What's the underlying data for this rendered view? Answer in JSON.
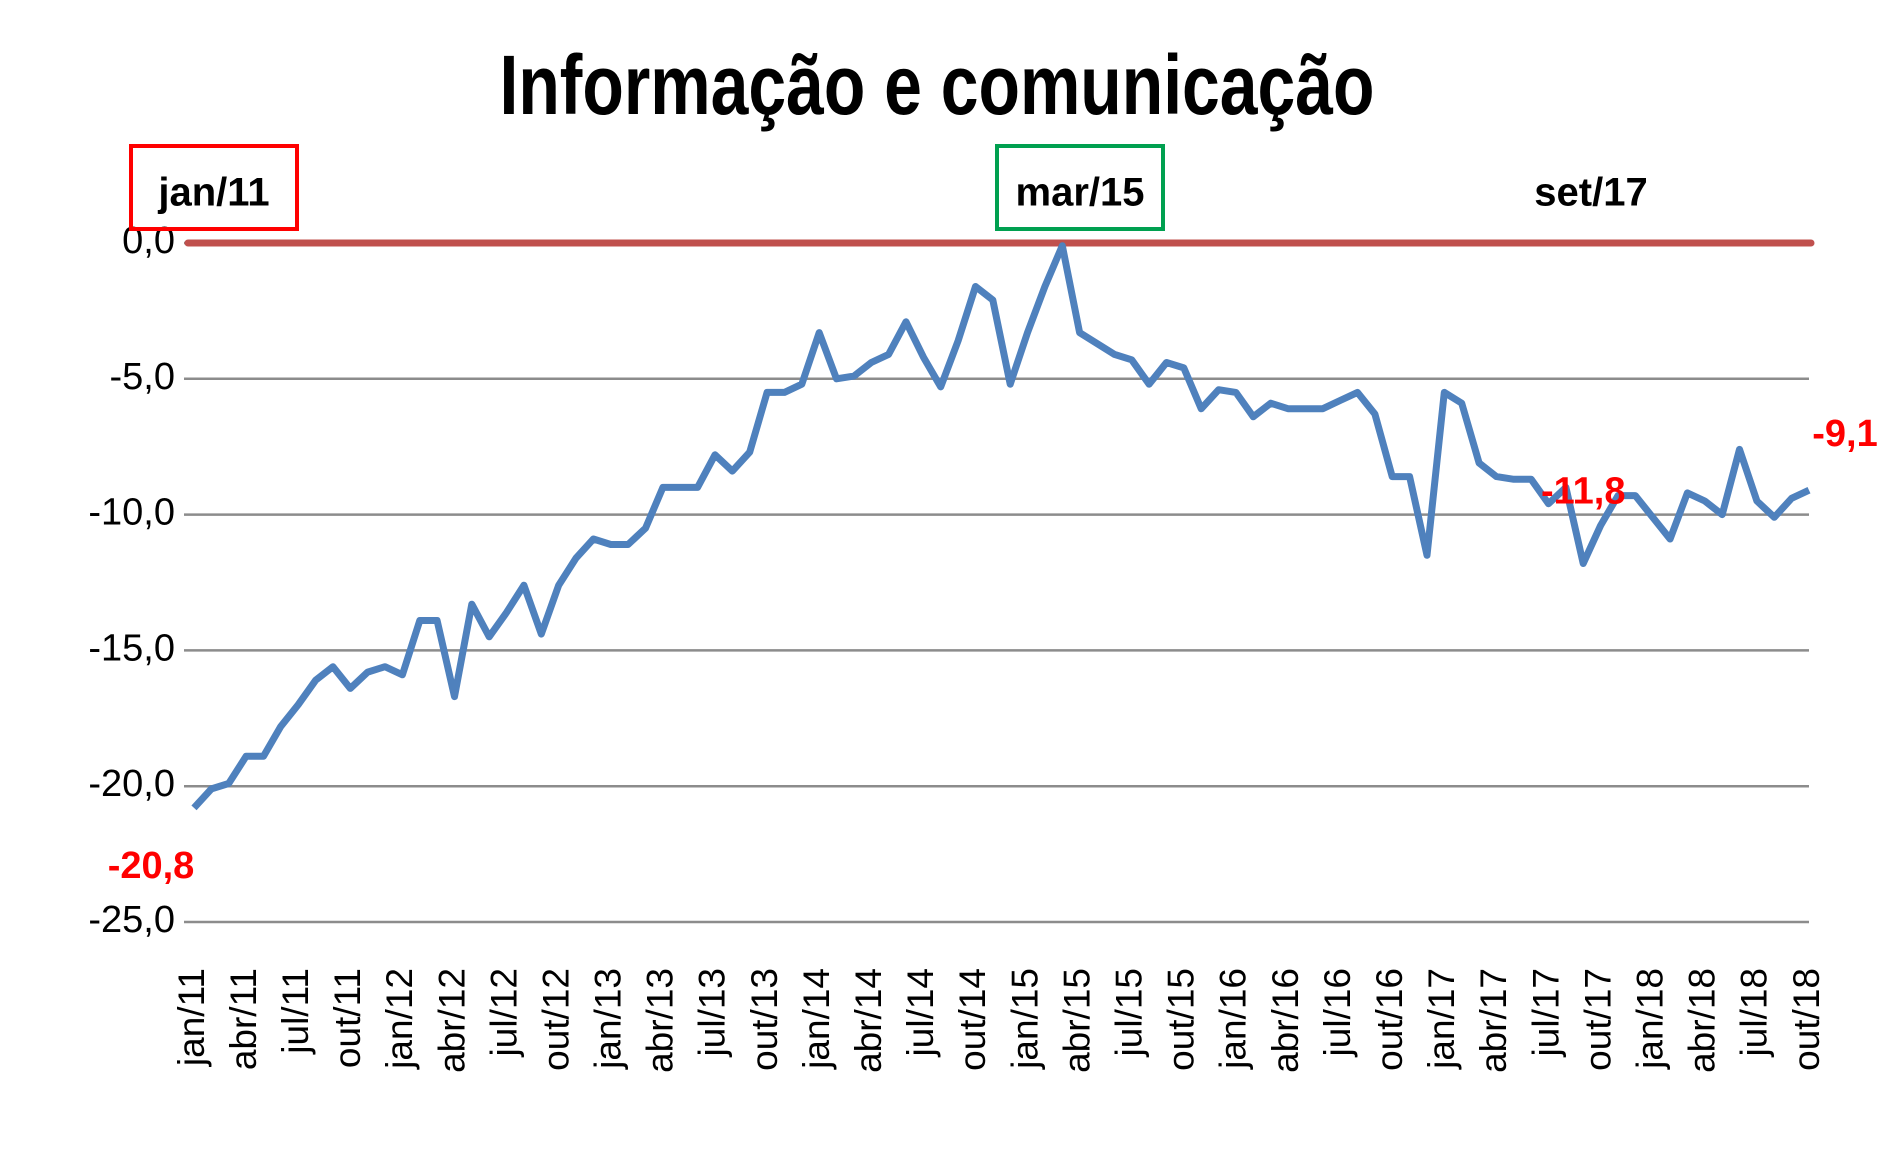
{
  "chart_data": {
    "type": "line",
    "title": "Informação e comunicação",
    "categories": [
      "jan/11",
      null,
      null,
      "abr/11",
      null,
      null,
      "jul/11",
      null,
      null,
      "out/11",
      null,
      null,
      "jan/12",
      null,
      null,
      "abr/12",
      null,
      null,
      "jul/12",
      null,
      null,
      "out/12",
      null,
      null,
      "jan/13",
      null,
      null,
      "abr/13",
      null,
      null,
      "jul/13",
      null,
      null,
      "out/13",
      null,
      null,
      "jan/14",
      null,
      null,
      "abr/14",
      null,
      null,
      "jul/14",
      null,
      null,
      "out/14",
      null,
      null,
      "jan/15",
      null,
      null,
      "abr/15",
      null,
      null,
      "jul/15",
      null,
      null,
      "out/15",
      null,
      null,
      "jan/16",
      null,
      null,
      "abr/16",
      null,
      null,
      "jul/16",
      null,
      null,
      "out/16",
      null,
      null,
      "jan/17",
      null,
      null,
      "abr/17",
      null,
      null,
      "jul/17",
      null,
      null,
      "out/17",
      null,
      null,
      "jan/18",
      null,
      null,
      "abr/18",
      null,
      null,
      "jul/18",
      null,
      null,
      "out/18"
    ],
    "series": [
      {
        "color": "#4f81bd",
        "values": [
          -20.8,
          -20.1,
          -19.9,
          -18.9,
          -18.9,
          -17.8,
          -17.0,
          -16.1,
          -15.6,
          -16.4,
          -15.8,
          -15.6,
          -15.9,
          -13.9,
          -13.9,
          -16.7,
          -13.3,
          -14.5,
          -13.6,
          -12.6,
          -14.4,
          -12.6,
          -11.6,
          -10.9,
          -11.1,
          -11.1,
          -10.5,
          -9.0,
          -9.0,
          -9.0,
          -7.8,
          -8.4,
          -7.7,
          -5.5,
          -5.5,
          -5.2,
          -3.3,
          -5.0,
          -4.9,
          -4.4,
          -4.1,
          -2.9,
          -4.2,
          -5.3,
          -3.6,
          -1.6,
          -2.1,
          -5.2,
          -3.3,
          -1.6,
          -0.1,
          -3.3,
          -3.7,
          -4.1,
          -4.3,
          -5.2,
          -4.4,
          -4.6,
          -6.1,
          -5.4,
          -5.5,
          -6.4,
          -5.9,
          -6.1,
          -6.1,
          -6.1,
          -5.8,
          -5.5,
          -6.3,
          -8.6,
          -8.6,
          -11.5,
          -5.5,
          -5.9,
          -8.1,
          -8.6,
          -8.7,
          -8.7,
          -9.6,
          -9.0,
          -11.8,
          -10.4,
          -9.3,
          -9.3,
          -10.1,
          -10.9,
          -9.2,
          -9.5,
          -10.0,
          -7.6,
          -9.5,
          -10.1,
          -9.4,
          -9.1
        ],
        "value_labels": [
          "-20,8",
          null,
          null,
          null,
          null,
          null,
          null,
          null,
          null,
          null,
          null,
          null,
          null,
          null,
          null,
          null,
          null,
          null,
          null,
          null,
          null,
          null,
          null,
          null,
          null,
          null,
          null,
          null,
          null,
          null,
          null,
          null,
          null,
          null,
          null,
          null,
          null,
          null,
          null,
          null,
          null,
          null,
          null,
          null,
          null,
          null,
          null,
          null,
          null,
          null,
          null,
          null,
          null,
          null,
          null,
          null,
          null,
          null,
          null,
          null,
          null,
          null,
          null,
          null,
          null,
          null,
          null,
          null,
          null,
          null,
          null,
          null,
          null,
          null,
          null,
          null,
          null,
          null,
          null,
          null,
          "-11,8",
          null,
          null,
          null,
          null,
          null,
          null,
          null,
          null,
          null,
          null,
          null,
          null,
          "-9,1"
        ]
      }
    ],
    "ylim": [
      -25,
      0
    ],
    "yticks": [
      {
        "value": 0,
        "label": "0,0"
      },
      {
        "value": -5,
        "label": "-5,0"
      },
      {
        "value": -10,
        "label": "-10,0"
      },
      {
        "value": -15,
        "label": "-15,0"
      },
      {
        "value": -20,
        "label": "-20,0"
      },
      {
        "value": -25,
        "label": "-25,0"
      }
    ],
    "grid": true,
    "reference_line": {
      "value": 0,
      "color": "#c0504d"
    },
    "annotations": [
      {
        "text": "jan/11",
        "box_color": "#ff0000"
      },
      {
        "text": "mar/15",
        "box_color": "#00a050"
      },
      {
        "text": "set/17"
      }
    ]
  }
}
